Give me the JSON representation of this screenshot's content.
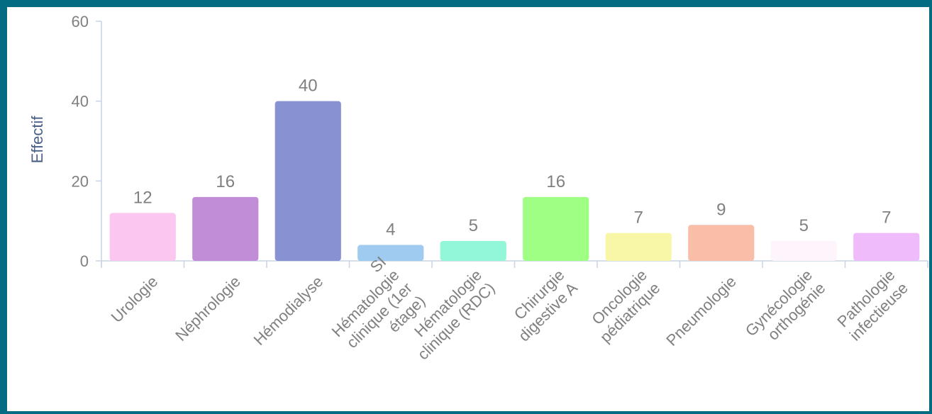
{
  "chart_data": {
    "type": "bar",
    "ylabel": "Effectif",
    "xlabel": "",
    "title": "",
    "ylim": [
      0,
      60
    ],
    "yticks": [
      0,
      20,
      40,
      60
    ],
    "grid": false,
    "categories": [
      [
        "Urologie"
      ],
      [
        "Néphrologie"
      ],
      [
        "Hémodialyse"
      ],
      [
        "SI",
        "Hématologie",
        "clinique (1er",
        "étage)"
      ],
      [
        "Hématologie",
        "clinique (RDC)"
      ],
      [
        "Chirurgie",
        "digestive A"
      ],
      [
        "Oncologie",
        "pédiatrique"
      ],
      [
        "Pneumologie"
      ],
      [
        "Gynécologie",
        "orthogénie"
      ],
      [
        "Pathologie",
        "infectieuse"
      ]
    ],
    "values": [
      12,
      16,
      40,
      4,
      5,
      16,
      7,
      9,
      5,
      7
    ],
    "colors": [
      "#fbc6ef",
      "#c18dd6",
      "#8891d1",
      "#9ecbef",
      "#92f7d8",
      "#9ffe84",
      "#f8f7a7",
      "#f9bea7",
      "#fdf5fb",
      "#efbbfb"
    ]
  }
}
